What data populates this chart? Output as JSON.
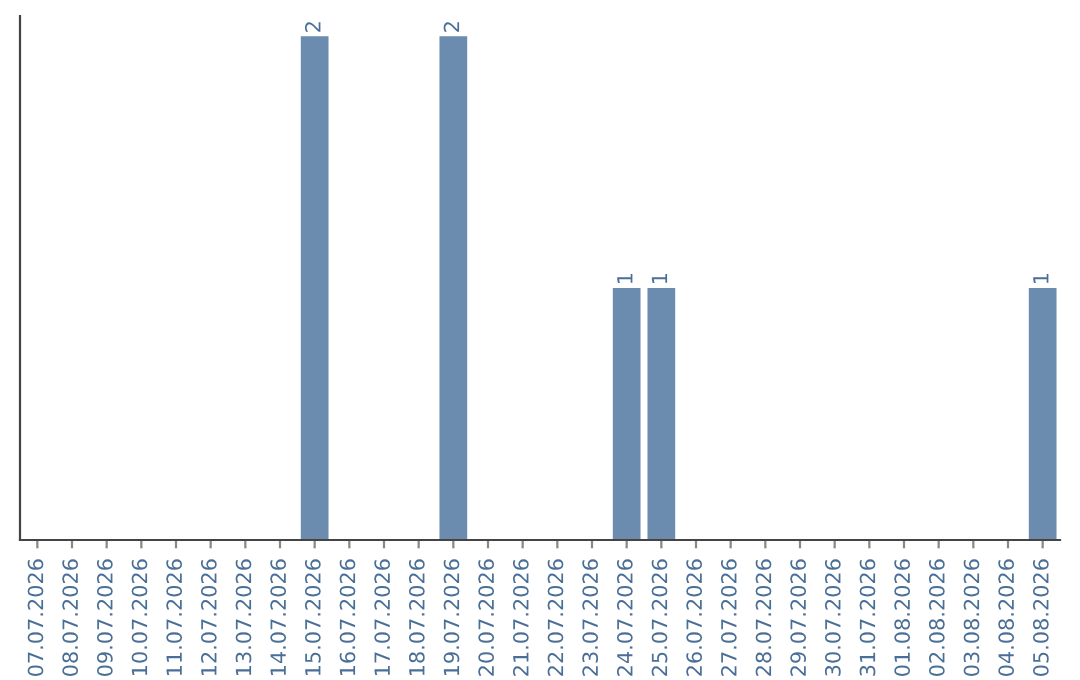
{
  "chart_data": {
    "type": "bar",
    "categories": [
      "07.07.2026",
      "08.07.2026",
      "09.07.2026",
      "10.07.2026",
      "11.07.2026",
      "12.07.2026",
      "13.07.2026",
      "14.07.2026",
      "15.07.2026",
      "16.07.2026",
      "17.07.2026",
      "18.07.2026",
      "19.07.2026",
      "20.07.2026",
      "21.07.2026",
      "22.07.2026",
      "23.07.2026",
      "24.07.2026",
      "25.07.2026",
      "26.07.2026",
      "27.07.2026",
      "28.07.2026",
      "29.07.2026",
      "30.07.2026",
      "31.07.2026",
      "01.08.2026",
      "02.08.2026",
      "03.08.2026",
      "04.08.2026",
      "05.08.2026"
    ],
    "values": [
      0,
      0,
      0,
      0,
      0,
      0,
      0,
      0,
      2,
      0,
      0,
      0,
      2,
      0,
      0,
      0,
      0,
      1,
      1,
      0,
      0,
      0,
      0,
      0,
      0,
      0,
      0,
      0,
      0,
      1
    ],
    "value_labels": [
      null,
      null,
      null,
      null,
      null,
      null,
      null,
      null,
      "2",
      null,
      null,
      null,
      "2",
      null,
      null,
      null,
      null,
      "1",
      "1",
      null,
      null,
      null,
      null,
      null,
      null,
      null,
      null,
      null,
      null,
      "1"
    ],
    "color": "#6b8cae",
    "tick_labels": "x",
    "grid": false,
    "legend": false
  }
}
